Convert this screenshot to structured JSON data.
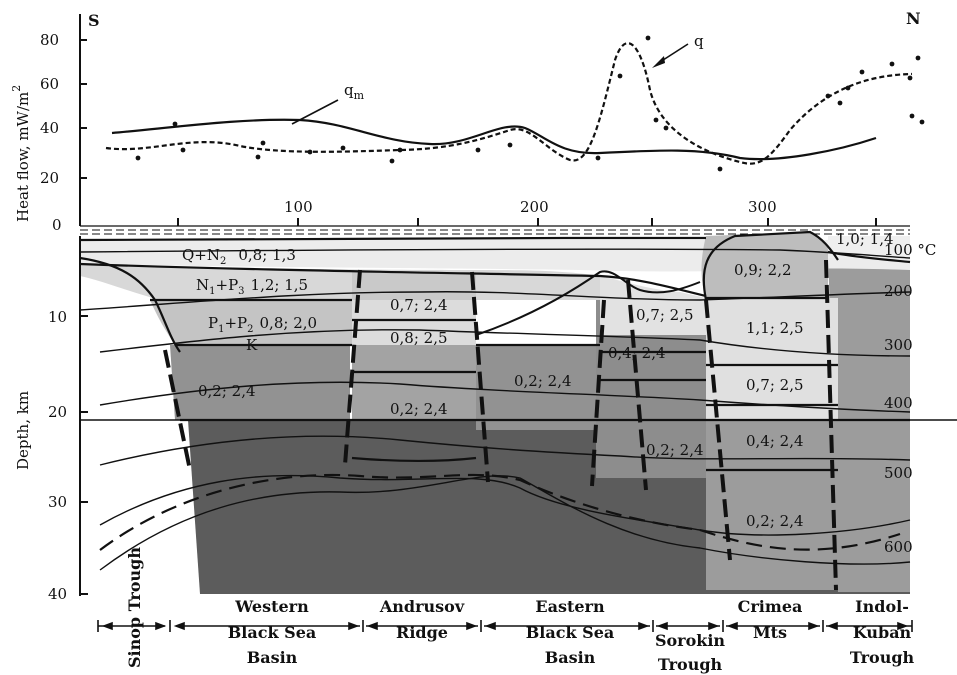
{
  "direction": {
    "left": "S",
    "right": "N"
  },
  "heat_flow": {
    "axis_label": "Heat flow, mW/m",
    "axis_label_sup": "2",
    "y_ticks": [
      "80",
      "60",
      "40",
      "20",
      "0"
    ],
    "x_ticks": [
      "100",
      "200",
      "300"
    ],
    "curve_labels": {
      "q": "q",
      "qm_base": "q",
      "qm_sub": "m"
    }
  },
  "section": {
    "axis_label": "Depth, km",
    "y_ticks": [
      "10",
      "20",
      "30",
      "40"
    ],
    "isotherms": [
      "100 °C",
      "200",
      "300",
      "400",
      "500",
      "600"
    ]
  },
  "layers": {
    "q_n2": {
      "base": "Q+N",
      "sub": "2",
      "vals": "0,8; 1,3"
    },
    "n1_p3": {
      "base": "N",
      "sub1": "1",
      "mid": "+P",
      "sub2": "3",
      "vals": "1,2; 1,5"
    },
    "p1_p2": {
      "base": "P",
      "sub1": "1",
      "mid": "+P",
      "sub2": "2",
      "vals": "0,8; 2,0"
    },
    "k": "K",
    "w_lower": "0,2; 2,4",
    "and_1": "0,7; 2,4",
    "and_2": "0,8; 2,5",
    "and_3": "0,2; 2,4",
    "east_1": "0,2; 2,4",
    "sor_1": "0,7; 2,5",
    "sor_2": "0,4; 2,4",
    "sor_3": "0,2; 2,4",
    "cri_top": "1,0; 1,4",
    "cri_1": "0,9; 2,2",
    "cri_2": "1,1; 2,5",
    "cri_3": "0,7; 2,5",
    "cri_4": "0,4; 2,4",
    "cri_5": "0,2; 2,4"
  },
  "regions": {
    "sinop": "Sinop Trough",
    "western": [
      "Western",
      "Black Sea",
      "Basin"
    ],
    "andrusov": [
      "Andrusov",
      "Ridge"
    ],
    "eastern": [
      "Eastern",
      "Black Sea",
      "Basin"
    ],
    "sorokin": [
      "Sorokin",
      "Trough"
    ],
    "crimea": [
      "Crimea",
      "Mts"
    ],
    "indol": [
      "Indol-",
      "Kuban",
      "Trough"
    ]
  }
}
